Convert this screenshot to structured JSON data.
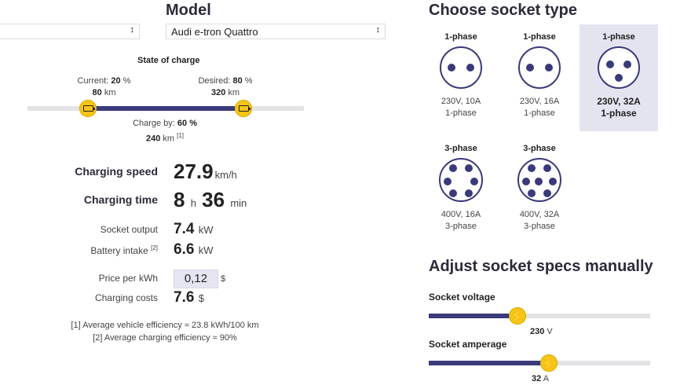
{
  "left": {
    "model_heading": "Model",
    "make_select": {
      "value": ""
    },
    "model_select": {
      "value": "Audi e-tron Quattro"
    },
    "soc_title": "State of charge",
    "current": {
      "label": "Current:",
      "percent": "20",
      "percent_unit": "%",
      "km": "80",
      "km_unit": "km",
      "fraction": 0.2
    },
    "desired": {
      "label": "Desired:",
      "percent": "80",
      "percent_unit": "%",
      "km": "320",
      "km_unit": "km",
      "fraction": 0.8
    },
    "charge_by": {
      "label": "Charge by:",
      "percent": "60",
      "percent_unit": "%",
      "km": "240",
      "km_unit": "km",
      "ref": "[1]"
    },
    "speed": {
      "label": "Charging speed",
      "value": "27.9",
      "unit": "km/h"
    },
    "time": {
      "label": "Charging time",
      "hours": "8",
      "h_unit": "h",
      "minutes": "36",
      "min_unit": "min"
    },
    "socket_output": {
      "label": "Socket output",
      "value": "7.4",
      "unit": "kW"
    },
    "battery_intake": {
      "label": "Battery intake",
      "ref": "[2]",
      "value": "6.6",
      "unit": "kW"
    },
    "price": {
      "label": "Price per kWh",
      "value": "0,12",
      "unit": "$"
    },
    "costs": {
      "label": "Charging costs",
      "value": "7.6",
      "unit": "$"
    },
    "footnotes": [
      "[1] Average vehicle efficiency ≈ 23.8 kWh/100 km",
      "[2] Average charging efficiency ≈ 90%"
    ]
  },
  "right": {
    "socket_heading": "Choose socket type",
    "sockets": [
      {
        "title": "1-phase",
        "spec": "230V, 10A",
        "phase": "1-phase",
        "selected": false
      },
      {
        "title": "1-phase",
        "spec": "230V, 16A",
        "phase": "1-phase",
        "selected": false
      },
      {
        "title": "1-phase",
        "spec": "230V, 32A",
        "phase": "1-phase",
        "selected": true
      },
      {
        "title": "3-phase",
        "spec": "400V, 16A",
        "phase": "3-phase",
        "selected": false
      },
      {
        "title": "3-phase",
        "spec": "400V, 32A",
        "phase": "3-phase",
        "selected": false
      }
    ],
    "adjust_heading": "Adjust socket specs manually",
    "voltage": {
      "label": "Socket voltage",
      "value": "230",
      "unit": "V",
      "fraction": 0.4
    },
    "amperage": {
      "label": "Socket amperage",
      "value": "32",
      "unit": "A",
      "fraction": 0.55
    }
  },
  "colors": {
    "accent": "#3a3a7a",
    "knob": "#f5c518",
    "selected_bg": "#e4e4f1"
  }
}
